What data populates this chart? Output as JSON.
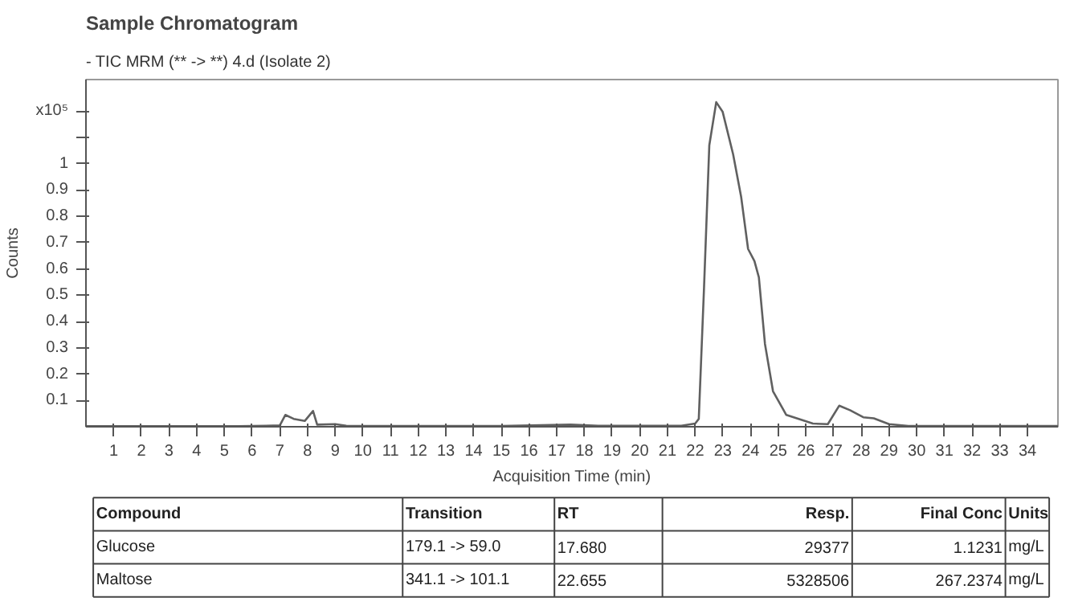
{
  "chart_data": {
    "type": "line",
    "title": "Sample Chromatogram",
    "subtitle": "- TIC MRM (** -> **) 4.d (Isolate 2)",
    "xlabel": "Acquisition Time (min)",
    "ylabel": "Counts",
    "xlim": [
      0,
      35.1
    ],
    "ylim": [
      0,
      1.32
    ],
    "xticks": [
      1,
      2,
      3,
      4,
      5,
      6,
      7,
      8,
      9,
      10,
      11,
      12,
      13,
      14,
      15,
      16,
      17,
      18,
      19,
      20,
      21,
      22,
      23,
      24,
      25,
      26,
      27,
      28,
      29,
      30,
      31,
      32,
      33,
      34
    ],
    "yticks": [
      0.1,
      0.2,
      0.3,
      0.4,
      0.5,
      0.6,
      0.7,
      0.8,
      0.9,
      1,
      {
        "value": 1.1,
        "label": null
      },
      {
        "value": 1.2,
        "label": "x10⁵"
      }
    ],
    "grid": false,
    "marker": "none",
    "line_style": "solid",
    "series": [
      {
        "color": "#606060",
        "x": [
          0,
          5.5,
          6.5,
          7.0,
          7.2,
          7.5,
          7.9,
          8.2,
          8.35,
          9,
          9.4,
          10,
          15,
          17.5,
          18.5,
          21.5,
          22.0,
          22.13,
          22.32,
          22.51,
          22.76,
          22.99,
          23.37,
          23.66,
          23.91,
          24.14,
          24.3,
          24.52,
          24.81,
          25.29,
          26.25,
          26.79,
          27.2,
          27.59,
          28.07,
          28.45,
          29.0,
          29.7,
          35.1
        ],
        "values": [
          0.002,
          0.002,
          0.004,
          0.005,
          0.045,
          0.03,
          0.022,
          0.06,
          0.008,
          0.01,
          0.004,
          0.003,
          0.003,
          0.008,
          0.004,
          0.004,
          0.012,
          0.03,
          0.53,
          1.07,
          1.234,
          1.198,
          1.036,
          0.874,
          0.676,
          0.63,
          0.568,
          0.315,
          0.135,
          0.045,
          0.012,
          0.01,
          0.08,
          0.063,
          0.036,
          0.032,
          0.01,
          0.003,
          0.003
        ]
      }
    ],
    "annotations": [
      "Compound",
      "Transition",
      "RT",
      "Resp.",
      "Final Conc",
      "Units",
      "Glucose",
      "179.1 -> 59.0",
      "17.680",
      "29377",
      "1.1231",
      "mg/L",
      "Maltose",
      "341.1 -> 101.1",
      "22.655",
      "5328506",
      "267.2374",
      "mg/L"
    ]
  }
}
